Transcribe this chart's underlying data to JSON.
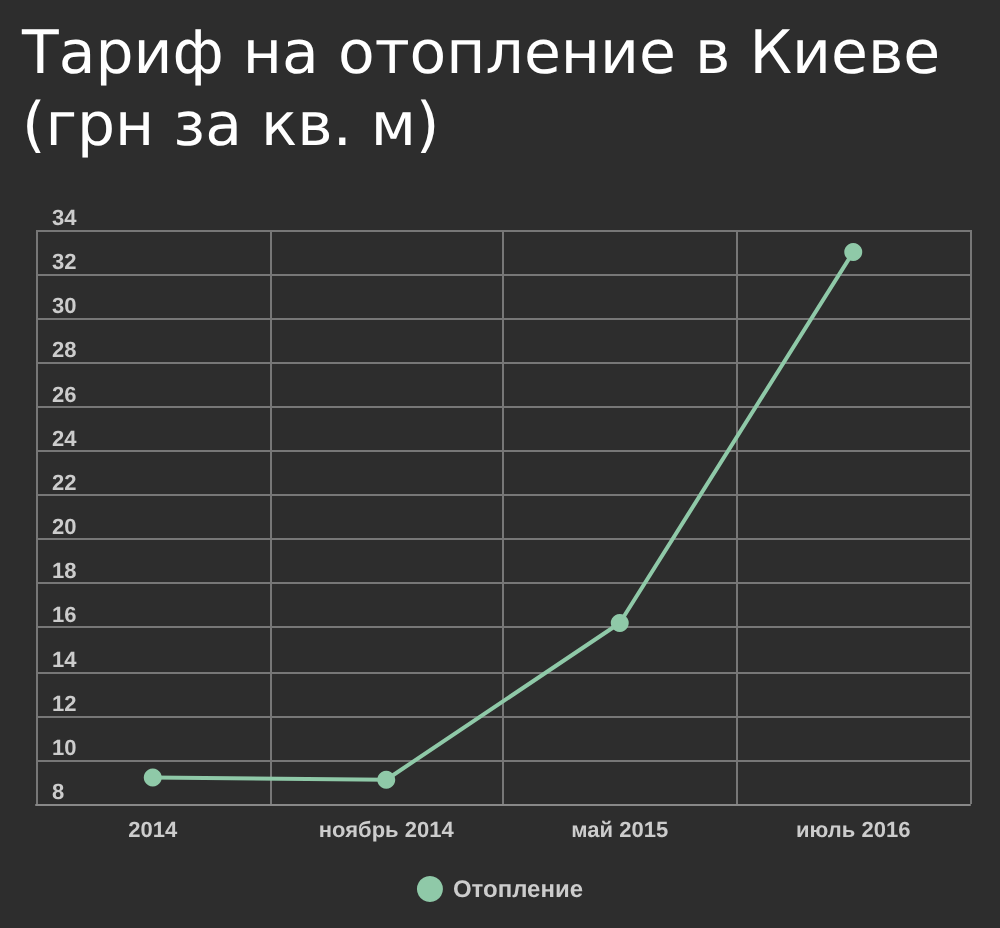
{
  "chart_data": {
    "type": "line",
    "title": "Тариф на отопление в Киеве\n(грн за кв. м)",
    "categories": [
      "2014",
      "ноябрь 2014",
      "май 2015",
      "июль 2016"
    ],
    "series": [
      {
        "name": "Отопление",
        "color": "#8fc9a8",
        "values": [
          9.2,
          9.1,
          16.2,
          33.0
        ]
      }
    ],
    "ylim": [
      8,
      34
    ],
    "yticks": [
      8,
      10,
      12,
      14,
      16,
      18,
      20,
      22,
      24,
      26,
      28,
      30,
      32,
      34
    ],
    "grid": true,
    "legend": "bottom",
    "marker": "circle",
    "line_style": "solid"
  }
}
